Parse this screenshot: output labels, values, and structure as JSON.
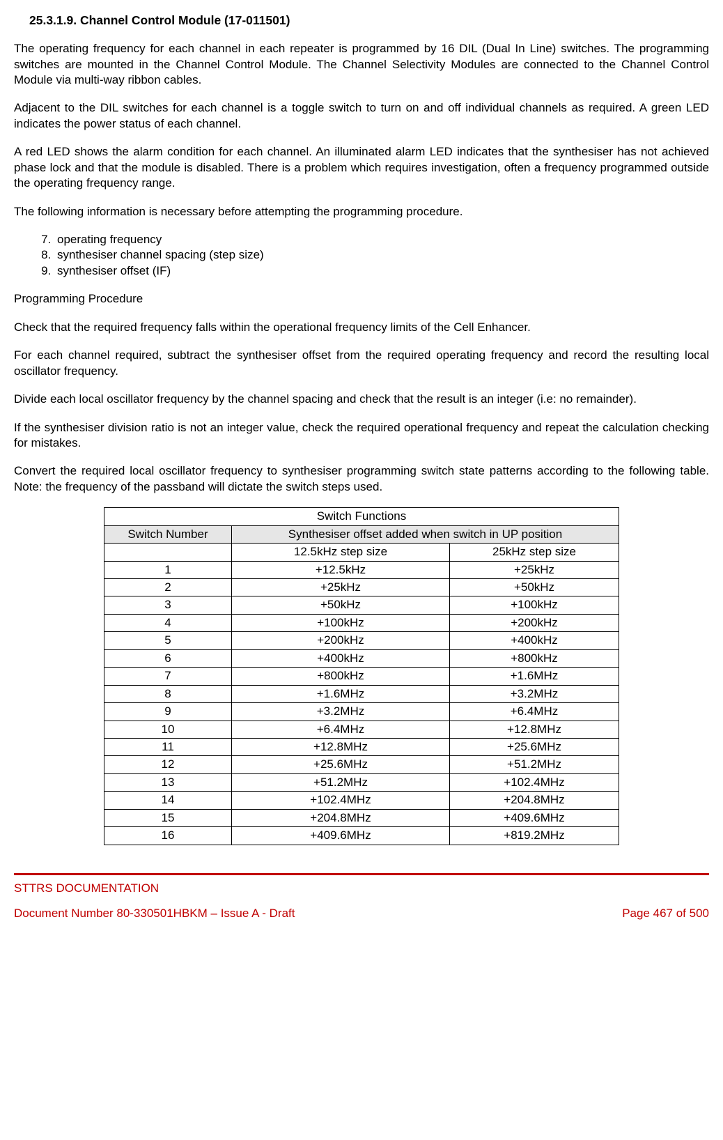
{
  "heading": "25.3.1.9.   Channel Control Module (17-011501)",
  "paragraphs": {
    "p1": "The operating frequency for each channel in each repeater is programmed by 16 DIL (Dual In Line) switches. The programming switches are mounted in the Channel Control Module. The Channel Selectivity Modules are connected to the Channel Control Module via multi-way ribbon cables.",
    "p2": "Adjacent to the DIL switches for each channel is a toggle switch to turn on and off individual channels as required. A green LED indicates the power status of each channel.",
    "p3": "A red LED shows the alarm condition for each channel. An illuminated alarm LED indicates that the synthesiser has not achieved phase lock and that the module is disabled. There is a problem which requires investigation, often a frequency programmed outside the operating frequency range.",
    "p4": "The following information is necessary before attempting the programming procedure.",
    "list": {
      "start": 7,
      "i1": "operating frequency",
      "i2": "synthesiser channel spacing (step size)",
      "i3": "synthesiser offset (IF)"
    },
    "p5": "Programming Procedure",
    "p6": "Check that the required frequency falls within the operational frequency limits of the Cell Enhancer.",
    "p7": "For each channel required, subtract the synthesiser offset from the required operating frequency and record the resulting local oscillator frequency.",
    "p8": "Divide each local oscillator frequency by the channel spacing and check that the result is an integer (i.e: no remainder).",
    "p9": "If the synthesiser division ratio is not an integer value, check the required operational frequency and repeat the calculation checking for mistakes.",
    "p10": "Convert the required local oscillator frequency to synthesiser programming switch state patterns according to the following table. Note: the frequency of the passband will dictate the switch steps used."
  },
  "table": {
    "title": "Switch Functions",
    "col_header_left": "Switch Number",
    "col_header_right": "Synthesiser offset added when switch in UP position",
    "sub_header_mid": "12.5kHz step size",
    "sub_header_right": "25kHz step size",
    "rows": [
      {
        "n": "1",
        "a": "+12.5kHz",
        "b": "+25kHz"
      },
      {
        "n": "2",
        "a": "+25kHz",
        "b": "+50kHz"
      },
      {
        "n": "3",
        "a": "+50kHz",
        "b": "+100kHz"
      },
      {
        "n": "4",
        "a": "+100kHz",
        "b": "+200kHz"
      },
      {
        "n": "5",
        "a": "+200kHz",
        "b": "+400kHz"
      },
      {
        "n": "6",
        "a": "+400kHz",
        "b": "+800kHz"
      },
      {
        "n": "7",
        "a": "+800kHz",
        "b": "+1.6MHz"
      },
      {
        "n": "8",
        "a": "+1.6MHz",
        "b": "+3.2MHz"
      },
      {
        "n": "9",
        "a": "+3.2MHz",
        "b": "+6.4MHz"
      },
      {
        "n": "10",
        "a": "+6.4MHz",
        "b": "+12.8MHz"
      },
      {
        "n": "11",
        "a": "+12.8MHz",
        "b": "+25.6MHz"
      },
      {
        "n": "12",
        "a": "+25.6MHz",
        "b": "+51.2MHz"
      },
      {
        "n": "13",
        "a": "+51.2MHz",
        "b": "+102.4MHz"
      },
      {
        "n": "14",
        "a": "+102.4MHz",
        "b": "+204.8MHz"
      },
      {
        "n": "15",
        "a": "+204.8MHz",
        "b": "+409.6MHz"
      },
      {
        "n": "16",
        "a": "+409.6MHz",
        "b": "+819.2MHz"
      }
    ]
  },
  "footer": {
    "line1": "STTRS DOCUMENTATION",
    "doc": "Document Number 80-330501HBKM – Issue A - Draft",
    "page": "Page 467 of 500"
  },
  "colors": {
    "rule": "#c00000",
    "footer_text": "#c00000",
    "header_bg": "#e6e6e6"
  }
}
